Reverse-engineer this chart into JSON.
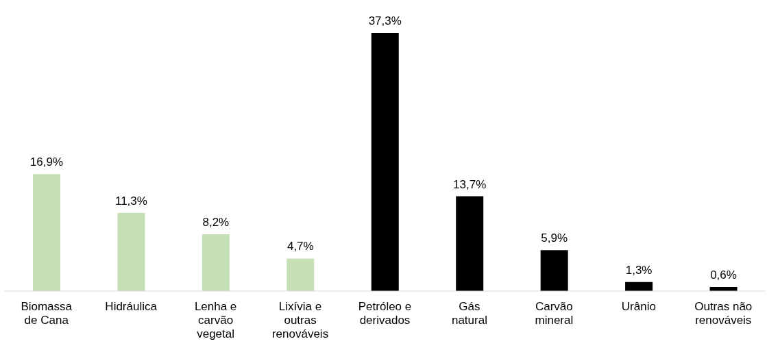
{
  "chart_data": {
    "type": "bar",
    "categories": [
      "Biomassa de Cana",
      "Hidráulica",
      "Lenha e carvão vegetal",
      "Lixívia e outras renováveis",
      "Petróleo e derivados",
      "Gás natural",
      "Carvão mineral",
      "Urânio",
      "Outras não renováveis"
    ],
    "values": [
      16.9,
      11.3,
      8.2,
      4.7,
      37.3,
      13.7,
      5.9,
      1.3,
      0.6
    ],
    "colors": [
      "#c5e0b4",
      "#c5e0b4",
      "#c5e0b4",
      "#c5e0b4",
      "#000000",
      "#000000",
      "#000000",
      "#000000",
      "#000000"
    ],
    "value_labels": [
      "16,9%",
      "11,3%",
      "8,2%",
      "4,7%",
      "37,3%",
      "13,7%",
      "5,9%",
      "1,3%",
      "0,6%"
    ],
    "grid": false,
    "legend": false
  }
}
